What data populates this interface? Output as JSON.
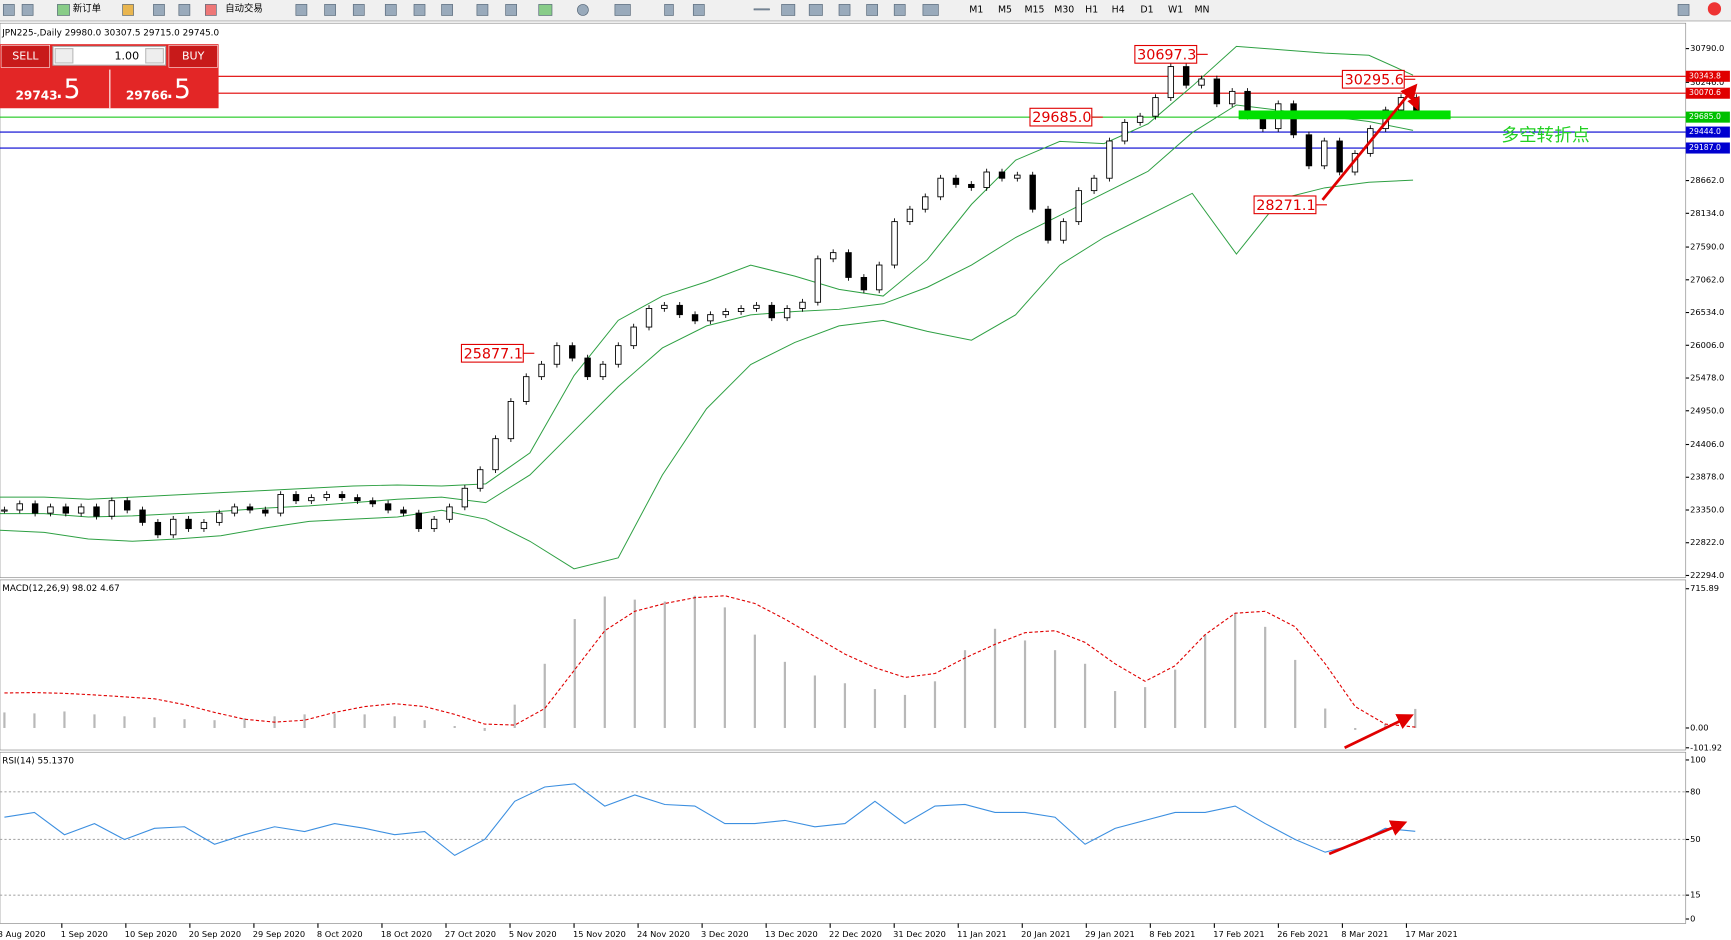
{
  "toolbar": {
    "new_order": "新订单",
    "auto_trading": "自动交易",
    "timeframes": [
      "M1",
      "M5",
      "M15",
      "M30",
      "H1",
      "H4",
      "D1",
      "W1",
      "MN"
    ]
  },
  "trade_panel": {
    "sell": "SELL",
    "buy": "BUY",
    "lot": "1.00",
    "sell_price": 29743,
    "sell_fraction": ".5",
    "buy_price": 29766,
    "buy_fraction": ".5"
  },
  "chart": {
    "header": "JPN225-,Daily  29980.0 30307.5 29715.0 29745.0",
    "ylim": [
      22294,
      30790
    ],
    "yticks": [
      {
        "value": 30790,
        "label": "30790.0"
      },
      {
        "value": 30246,
        "label": "30246.0"
      },
      {
        "value": 28662,
        "label": "28662.0"
      },
      {
        "value": 28134,
        "label": "28134.0"
      },
      {
        "value": 27590,
        "label": "27590.0"
      },
      {
        "value": 27062,
        "label": "27062.0"
      },
      {
        "value": 26534,
        "label": "26534.0"
      },
      {
        "value": 26006,
        "label": "26006.0"
      },
      {
        "value": 25478,
        "label": "25478.0"
      },
      {
        "value": 24950,
        "label": "24950.0"
      },
      {
        "value": 24406,
        "label": "24406.0"
      },
      {
        "value": 23878,
        "label": "23878.0"
      },
      {
        "value": 23350,
        "label": "23350.0"
      },
      {
        "value": 22822,
        "label": "22822.0"
      },
      {
        "value": 22294,
        "label": "22294.0"
      }
    ],
    "levels": [
      {
        "value": 30343.8,
        "color": "#e00000"
      },
      {
        "value": 30070.6,
        "color": "#e00000"
      },
      {
        "value": {
          "value": 29685,
          "label": "29685.0"
        },
        "color": "#00c000"
      },
      {
        "value": {
          "value": 29444,
          "label": "29444.0"
        },
        "color": "#0000d0"
      },
      {
        "value": {
          "value": 29187,
          "label": "29187.0"
        },
        "color": "#0000d0"
      }
    ],
    "price_labels": [
      30697.3,
      30295.6,
      {
        "value": 29685,
        "label": "29685.0"
      },
      28271.1,
      25877.1
    ],
    "annotation_text": "多空转折点",
    "closes": [
      23350,
      23450,
      23300,
      23400,
      23300,
      23400,
      23250,
      23500,
      23350,
      23150,
      22950,
      23200,
      23050,
      23150,
      23300,
      23400,
      23350,
      23300,
      23600,
      23500,
      23550,
      23600,
      23550,
      23500,
      23450,
      23350,
      23300,
      23050,
      23200,
      23400,
      23700,
      24000,
      24500,
      25100,
      25500,
      25700,
      26000,
      25800,
      25500,
      25700,
      26000,
      26300,
      26600,
      26650,
      26500,
      26400,
      26500,
      26550,
      26600,
      26650,
      26450,
      26600,
      26700,
      27400,
      27500,
      27100,
      26900,
      27300,
      28000,
      28200,
      28400,
      28700,
      28600,
      28550,
      28800,
      28700,
      28750,
      28200,
      27700,
      28000,
      28500,
      28700,
      29300,
      29600,
      29700,
      30000,
      30500,
      30200,
      30300,
      29900,
      30100,
      29700,
      29500,
      29900,
      29400,
      28900,
      29300,
      28800,
      29100,
      29500,
      29800,
      30000,
      29745
    ],
    "bands": [
      {
        "name": "upper",
        "color": "#2ea043",
        "values": [
          23558,
          23558,
          23523,
          23558,
          23594,
          23630,
          23665,
          23701,
          23737,
          23754,
          23737,
          23772,
          24271,
          25518,
          26408,
          26800,
          27031,
          27299,
          27121,
          26907,
          26800,
          27388,
          28278,
          28991,
          29294,
          29258,
          29578,
          30184,
          30825,
          30772,
          30718,
          30683,
          30362
        ]
      },
      {
        "name": "middle",
        "color": "#2ea043",
        "values": [
          23291,
          23291,
          23238,
          23256,
          23291,
          23327,
          23380,
          23416,
          23469,
          23523,
          23558,
          23469,
          23915,
          24627,
          25340,
          25963,
          26319,
          26497,
          26551,
          26586,
          26675,
          26942,
          27299,
          27744,
          28100,
          28456,
          28812,
          29436,
          29881,
          29792,
          29703,
          29614,
          29471
        ]
      },
      {
        "name": "lower",
        "color": "#2ea043",
        "values": [
          23024,
          22989,
          22882,
          22846,
          22882,
          22935,
          23060,
          23167,
          23202,
          23238,
          23345,
          23202,
          22846,
          22401,
          22579,
          23915,
          24983,
          25696,
          26052,
          26319,
          26408,
          26230,
          26088,
          26497,
          27299,
          27744,
          28100,
          28456,
          27477,
          28367,
          28545,
          28634,
          28670
        ]
      }
    ],
    "x_labels": [
      "3 Aug 2020",
      "1 Sep 2020",
      "10 Sep 2020",
      "20 Sep 2020",
      "29 Sep 2020",
      "8 Oct 2020",
      "18 Oct 2020",
      "27 Oct 2020",
      "5 Nov 2020",
      "15 Nov 2020",
      "24 Nov 2020",
      "3 Dec 2020",
      "13 Dec 2020",
      "22 Dec 2020",
      "31 Dec 2020",
      "11 Jan 2021",
      "20 Jan 2021",
      "29 Jan 2021",
      "8 Feb 2021",
      "17 Feb 2021",
      "26 Feb 2021",
      "8 Mar 2021",
      "17 Mar 2021"
    ],
    "macd": {
      "label": "MACD(12,26,9) 98.02 4.67",
      "ylim": [
        -101.92,
        715.89
      ],
      "yticks": [
        715.89,
        {
          "value": 0,
          "label": "0.00"
        },
        -101.92
      ],
      "histogram": [
        80,
        75,
        85,
        70,
        60,
        55,
        45,
        40,
        50,
        60,
        70,
        75,
        70,
        60,
        40,
        10,
        -15,
        120,
        330,
        560,
        676,
        660,
        650,
        680,
        620,
        480,
        340,
        270,
        230,
        200,
        170,
        240,
        400,
        510,
        450,
        400,
        330,
        190,
        210,
        300,
        480,
        590,
        520,
        350,
        100,
        -10,
        20,
        98.02
      ],
      "signal": [
        180,
        182,
        178,
        170,
        160,
        150,
        120,
        80,
        45,
        30,
        40,
        80,
        110,
        125,
        110,
        70,
        20,
        15,
        100,
        300,
        500,
        600,
        640,
        670,
        680,
        640,
        560,
        470,
        380,
        310,
        260,
        280,
        360,
        430,
        490,
        500,
        440,
        330,
        240,
        320,
        480,
        590,
        600,
        520,
        330,
        110,
        20,
        4.67
      ]
    },
    "rsi": {
      "label": "RSI(14) 55.1370",
      "ylim": [
        0,
        100
      ],
      "yticks": [
        100,
        80,
        50,
        15,
        0
      ],
      "levels": [
        80,
        50,
        15
      ],
      "values": [
        64,
        67,
        53,
        60,
        50,
        57,
        58,
        47,
        53,
        58,
        55,
        60,
        57,
        53,
        55,
        40,
        50,
        74,
        83,
        85,
        71,
        78,
        72,
        71,
        60,
        60,
        62,
        58,
        60,
        74,
        60,
        71,
        72,
        67,
        67,
        64,
        47,
        57,
        62,
        67,
        67,
        71,
        60,
        50,
        42,
        47,
        57,
        55.137
      ]
    }
  }
}
